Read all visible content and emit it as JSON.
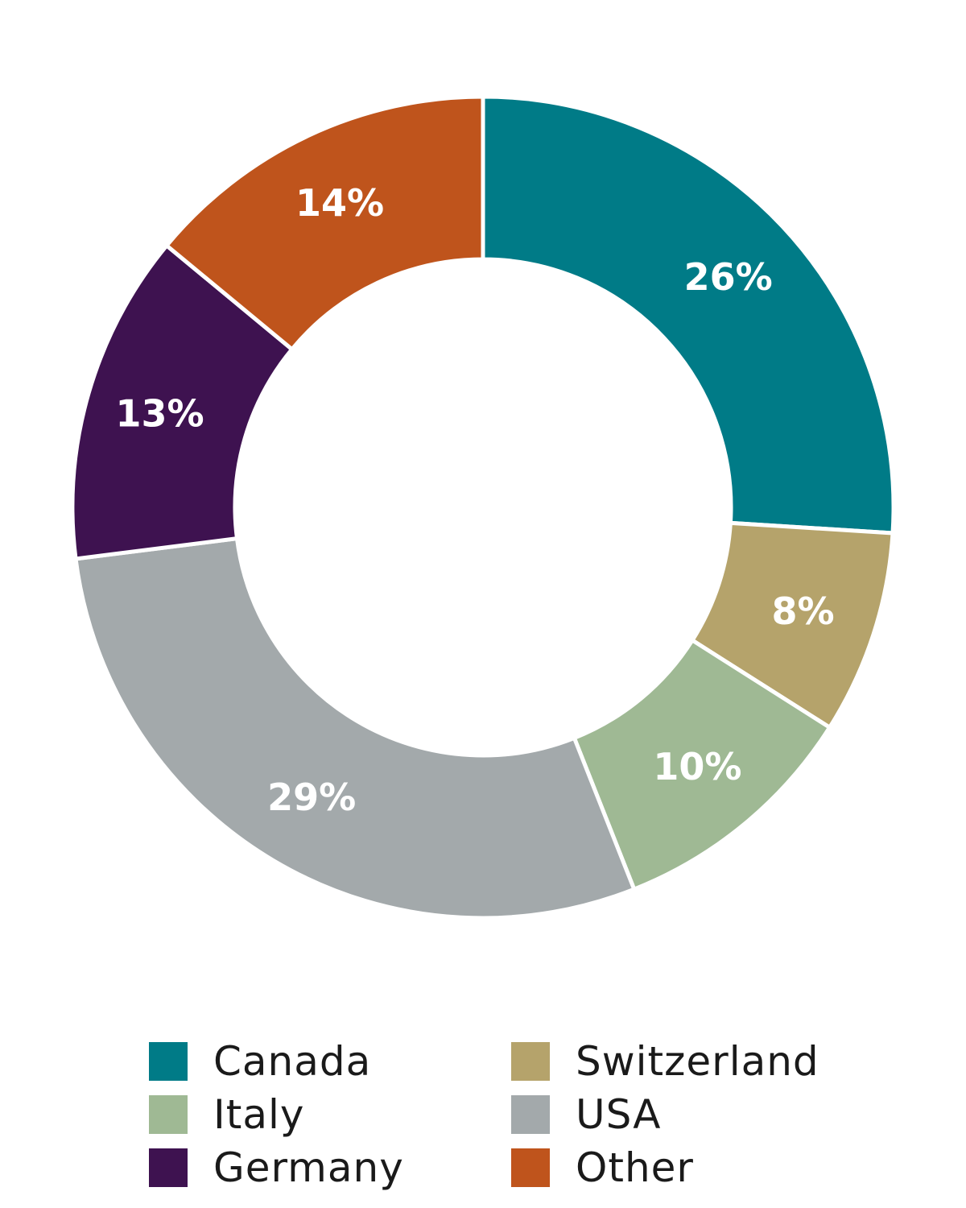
{
  "chart_data": {
    "type": "pie",
    "donut": true,
    "title": "",
    "categories": [
      "Canada",
      "Switzerland",
      "Italy",
      "USA",
      "Germany",
      "Other"
    ],
    "values": [
      26,
      8,
      10,
      29,
      13,
      14
    ],
    "labels": [
      "26%",
      "8%",
      "10%",
      "29%",
      "13%",
      "14%"
    ],
    "colors": [
      "#007b87",
      "#b5a36b",
      "#9fb994",
      "#a3a9ab",
      "#3e1250",
      "#bf541c"
    ],
    "legend": {
      "placement": "bottom",
      "items": [
        {
          "name": "Canada",
          "color": "#007b87"
        },
        {
          "name": "Switzerland",
          "color": "#b5a36b"
        },
        {
          "name": "Italy",
          "color": "#9fb994"
        },
        {
          "name": "USA",
          "color": "#a3a9ab"
        },
        {
          "name": "Germany",
          "color": "#3e1250"
        },
        {
          "name": "Other",
          "color": "#bf541c"
        }
      ]
    }
  }
}
